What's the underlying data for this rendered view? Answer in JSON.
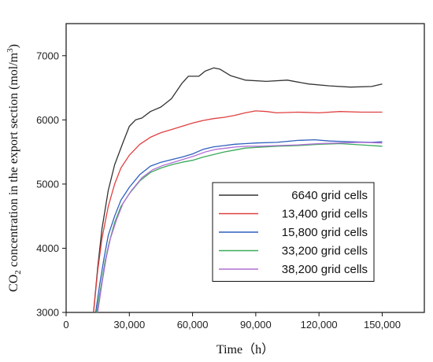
{
  "chart_data": {
    "type": "line",
    "title": "",
    "xlabel": "Time（h）",
    "ylabel_prefix": "CO",
    "ylabel_sub": "2",
    "ylabel_rest": " concentration in the export section (mol/m",
    "ylabel_sup": "3",
    "ylabel_end": ")",
    "xlim": [
      0,
      170000
    ],
    "ylim": [
      3000,
      7500
    ],
    "xticks": [
      0,
      30000,
      60000,
      90000,
      120000,
      150000
    ],
    "xtick_labels": [
      "0",
      "30,000",
      "60,000",
      "90,000",
      "120,000",
      "150,000"
    ],
    "yticks": [
      3000,
      4000,
      5000,
      6000,
      7000
    ],
    "ytick_labels": [
      "3000",
      "4000",
      "5000",
      "6000",
      "7000"
    ],
    "grid": false,
    "legend_position": "lower-right",
    "series": [
      {
        "name": "6640 grid cells",
        "color": "#333333",
        "points": [
          [
            13000,
            3000
          ],
          [
            15000,
            3700
          ],
          [
            17000,
            4300
          ],
          [
            20000,
            4900
          ],
          [
            23000,
            5300
          ],
          [
            27000,
            5650
          ],
          [
            30000,
            5900
          ],
          [
            33000,
            6000
          ],
          [
            36000,
            6030
          ],
          [
            40000,
            6130
          ],
          [
            45000,
            6200
          ],
          [
            50000,
            6330
          ],
          [
            55000,
            6570
          ],
          [
            58000,
            6680
          ],
          [
            61000,
            6680
          ],
          [
            63000,
            6680
          ],
          [
            66000,
            6760
          ],
          [
            70000,
            6810
          ],
          [
            73000,
            6790
          ],
          [
            78000,
            6690
          ],
          [
            85000,
            6620
          ],
          [
            95000,
            6600
          ],
          [
            105000,
            6620
          ],
          [
            115000,
            6560
          ],
          [
            125000,
            6530
          ],
          [
            135000,
            6510
          ],
          [
            145000,
            6520
          ],
          [
            150000,
            6560
          ]
        ]
      },
      {
        "name": "13,400 grid cells",
        "color": "#e04040",
        "points": [
          [
            13000,
            3000
          ],
          [
            15000,
            3650
          ],
          [
            17000,
            4150
          ],
          [
            20000,
            4650
          ],
          [
            23000,
            5000
          ],
          [
            26000,
            5250
          ],
          [
            30000,
            5450
          ],
          [
            35000,
            5620
          ],
          [
            40000,
            5730
          ],
          [
            45000,
            5800
          ],
          [
            50000,
            5850
          ],
          [
            55000,
            5900
          ],
          [
            60000,
            5950
          ],
          [
            65000,
            5990
          ],
          [
            70000,
            6020
          ],
          [
            75000,
            6040
          ],
          [
            80000,
            6070
          ],
          [
            85000,
            6110
          ],
          [
            90000,
            6140
          ],
          [
            95000,
            6130
          ],
          [
            100000,
            6110
          ],
          [
            110000,
            6120
          ],
          [
            120000,
            6110
          ],
          [
            130000,
            6130
          ],
          [
            140000,
            6120
          ],
          [
            150000,
            6120
          ]
        ]
      },
      {
        "name": "15,800 grid cells",
        "color": "#2f5fbf",
        "points": [
          [
            14000,
            3000
          ],
          [
            16000,
            3450
          ],
          [
            18000,
            3850
          ],
          [
            20000,
            4200
          ],
          [
            23000,
            4500
          ],
          [
            26000,
            4750
          ],
          [
            30000,
            4950
          ],
          [
            35000,
            5150
          ],
          [
            40000,
            5280
          ],
          [
            45000,
            5340
          ],
          [
            50000,
            5380
          ],
          [
            55000,
            5420
          ],
          [
            60000,
            5470
          ],
          [
            65000,
            5540
          ],
          [
            70000,
            5580
          ],
          [
            75000,
            5600
          ],
          [
            80000,
            5620
          ],
          [
            85000,
            5630
          ],
          [
            90000,
            5640
          ],
          [
            100000,
            5650
          ],
          [
            110000,
            5680
          ],
          [
            118000,
            5690
          ],
          [
            125000,
            5670
          ],
          [
            135000,
            5660
          ],
          [
            145000,
            5650
          ],
          [
            150000,
            5660
          ]
        ]
      },
      {
        "name": "33,200 grid cells",
        "color": "#3aaa5a",
        "points": [
          [
            14500,
            3000
          ],
          [
            16500,
            3400
          ],
          [
            18500,
            3800
          ],
          [
            20500,
            4100
          ],
          [
            23000,
            4400
          ],
          [
            26000,
            4650
          ],
          [
            30000,
            4850
          ],
          [
            35000,
            5050
          ],
          [
            40000,
            5180
          ],
          [
            45000,
            5250
          ],
          [
            50000,
            5300
          ],
          [
            55000,
            5340
          ],
          [
            60000,
            5370
          ],
          [
            65000,
            5420
          ],
          [
            70000,
            5460
          ],
          [
            75000,
            5500
          ],
          [
            80000,
            5530
          ],
          [
            85000,
            5560
          ],
          [
            90000,
            5570
          ],
          [
            100000,
            5590
          ],
          [
            110000,
            5600
          ],
          [
            120000,
            5620
          ],
          [
            130000,
            5630
          ],
          [
            140000,
            5610
          ],
          [
            150000,
            5590
          ]
        ]
      },
      {
        "name": "38,200 grid cells",
        "color": "#b06fd6",
        "points": [
          [
            15000,
            3000
          ],
          [
            17000,
            3450
          ],
          [
            19000,
            3850
          ],
          [
            21000,
            4150
          ],
          [
            24000,
            4450
          ],
          [
            27000,
            4700
          ],
          [
            31000,
            4900
          ],
          [
            36000,
            5100
          ],
          [
            41000,
            5220
          ],
          [
            46000,
            5290
          ],
          [
            51000,
            5340
          ],
          [
            56000,
            5390
          ],
          [
            61000,
            5440
          ],
          [
            66000,
            5500
          ],
          [
            71000,
            5540
          ],
          [
            76000,
            5560
          ],
          [
            81000,
            5580
          ],
          [
            86000,
            5590
          ],
          [
            92000,
            5590
          ],
          [
            100000,
            5600
          ],
          [
            110000,
            5610
          ],
          [
            120000,
            5630
          ],
          [
            130000,
            5640
          ],
          [
            140000,
            5650
          ],
          [
            150000,
            5640
          ]
        ]
      }
    ]
  }
}
